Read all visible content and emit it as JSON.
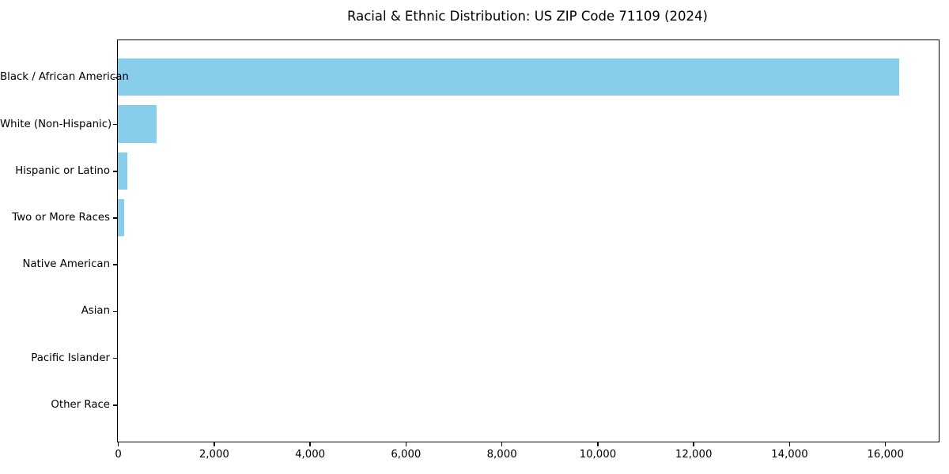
{
  "title": "Racial & Ethnic Distribution: US ZIP Code 71109 (2024)",
  "colors": {
    "bar": "#87CEEB",
    "spine": "#000000",
    "text": "#000000",
    "background": "#ffffff"
  },
  "chart_data": {
    "type": "bar",
    "orientation": "horizontal",
    "title": "Racial & Ethnic Distribution: US ZIP Code 71109 (2024)",
    "xlabel": "",
    "ylabel": "",
    "categories": [
      "Black / African American",
      "White (Non-Hispanic)",
      "Hispanic or Latino",
      "Two or More Races",
      "Native American",
      "Asian",
      "Pacific Islander",
      "Other Race"
    ],
    "values": [
      16300,
      800,
      200,
      130,
      0,
      0,
      0,
      0
    ],
    "xlim": [
      0,
      17120
    ],
    "x_ticks": [
      0,
      2000,
      4000,
      6000,
      8000,
      10000,
      12000,
      14000,
      16000
    ],
    "x_tick_labels": [
      "0",
      "2,000",
      "4,000",
      "6,000",
      "8,000",
      "10,000",
      "12,000",
      "14,000",
      "16,000"
    ],
    "bar_color": "#87CEEB",
    "bar_relative_height": 0.8,
    "grid": false,
    "legend": null
  }
}
